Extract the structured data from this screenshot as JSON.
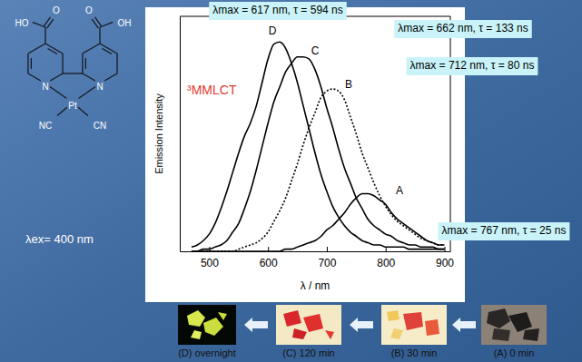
{
  "chart_data": {
    "type": "line",
    "x_label": "λ / nm",
    "y_label": "Emission Intensity",
    "x": [
      470,
      480,
      490,
      500,
      510,
      520,
      530,
      540,
      550,
      560,
      570,
      580,
      590,
      600,
      610,
      620,
      630,
      640,
      650,
      660,
      670,
      680,
      690,
      700,
      710,
      720,
      730,
      740,
      750,
      760,
      770,
      780,
      790,
      800,
      810,
      820,
      830,
      840,
      850,
      860,
      870,
      880,
      890,
      900
    ],
    "xlim": [
      450,
      910
    ],
    "xticks": [
      500,
      600,
      700,
      800,
      900
    ],
    "ylim": [
      0,
      1.1
    ],
    "tick_labels": "x",
    "grid": false,
    "annotations": [
      "³MMLCT"
    ],
    "series": [
      {
        "name": "A",
        "color": "#000000",
        "line_style": "solid",
        "annotation": "λmax = 767 nm, τ = 25 ns",
        "values": [
          0,
          0,
          0,
          0,
          0,
          0,
          0,
          0,
          0,
          0,
          0,
          0,
          0,
          0,
          0,
          0,
          0.01,
          0.01,
          0.02,
          0.03,
          0.04,
          0.05,
          0.07,
          0.1,
          0.12,
          0.15,
          0.18,
          0.22,
          0.25,
          0.27,
          0.27,
          0.26,
          0.24,
          0.22,
          0.18,
          0.15,
          0.13,
          0.11,
          0.09,
          0.07,
          0.05,
          0.04,
          0.03,
          0.03
        ]
      },
      {
        "name": "B",
        "color": "#000000",
        "line_style": "dotted",
        "annotation": "λmax = 712 nm, τ = 80 ns",
        "values": [
          0,
          0,
          0,
          0,
          0,
          0,
          0,
          0,
          0.01,
          0.02,
          0.03,
          0.04,
          0.06,
          0.09,
          0.14,
          0.19,
          0.25,
          0.33,
          0.41,
          0.5,
          0.58,
          0.65,
          0.72,
          0.75,
          0.76,
          0.75,
          0.71,
          0.63,
          0.55,
          0.46,
          0.39,
          0.32,
          0.26,
          0.21,
          0.17,
          0.14,
          0.12,
          0.1,
          0.08,
          0.06,
          0.05,
          0.04,
          0.03,
          0.03
        ]
      },
      {
        "name": "C",
        "color": "#000000",
        "line_style": "solid",
        "annotation": "λmax = 662 nm, τ = 133 ns",
        "values": [
          0,
          0,
          0.01,
          0.01,
          0.02,
          0.03,
          0.05,
          0.09,
          0.13,
          0.2,
          0.28,
          0.38,
          0.49,
          0.6,
          0.7,
          0.77,
          0.84,
          0.88,
          0.91,
          0.91,
          0.9,
          0.85,
          0.77,
          0.67,
          0.58,
          0.48,
          0.39,
          0.32,
          0.25,
          0.2,
          0.15,
          0.12,
          0.1,
          0.08,
          0.07,
          0.05,
          0.04,
          0.03,
          0.03,
          0.02,
          0.02,
          0.02,
          0.01,
          0.01
        ]
      },
      {
        "name": "D",
        "color": "#000000",
        "line_style": "solid",
        "annotation": "λmax = 617 nm, τ = 594 ns",
        "values": [
          0.02,
          0.03,
          0.05,
          0.08,
          0.13,
          0.2,
          0.28,
          0.37,
          0.46,
          0.54,
          0.6,
          0.68,
          0.79,
          0.9,
          0.97,
          0.98,
          0.95,
          0.88,
          0.79,
          0.68,
          0.57,
          0.46,
          0.36,
          0.28,
          0.21,
          0.16,
          0.12,
          0.09,
          0.07,
          0.05,
          0.04,
          0.03,
          0.03,
          0.02,
          0.02,
          0.02,
          0.02,
          0.01,
          0.01,
          0.01,
          0.01,
          0.01,
          0.01,
          0.01
        ]
      }
    ]
  },
  "structure": {
    "atoms": [
      "HO",
      "O",
      "O",
      "OH",
      "N",
      "N",
      "Pt",
      "NC",
      "CN"
    ]
  },
  "excitation": "λex= 400 nm",
  "photos": [
    "(D) overnight",
    "(C) 120 min",
    "(B) 30 min",
    "(A) 0 min"
  ]
}
